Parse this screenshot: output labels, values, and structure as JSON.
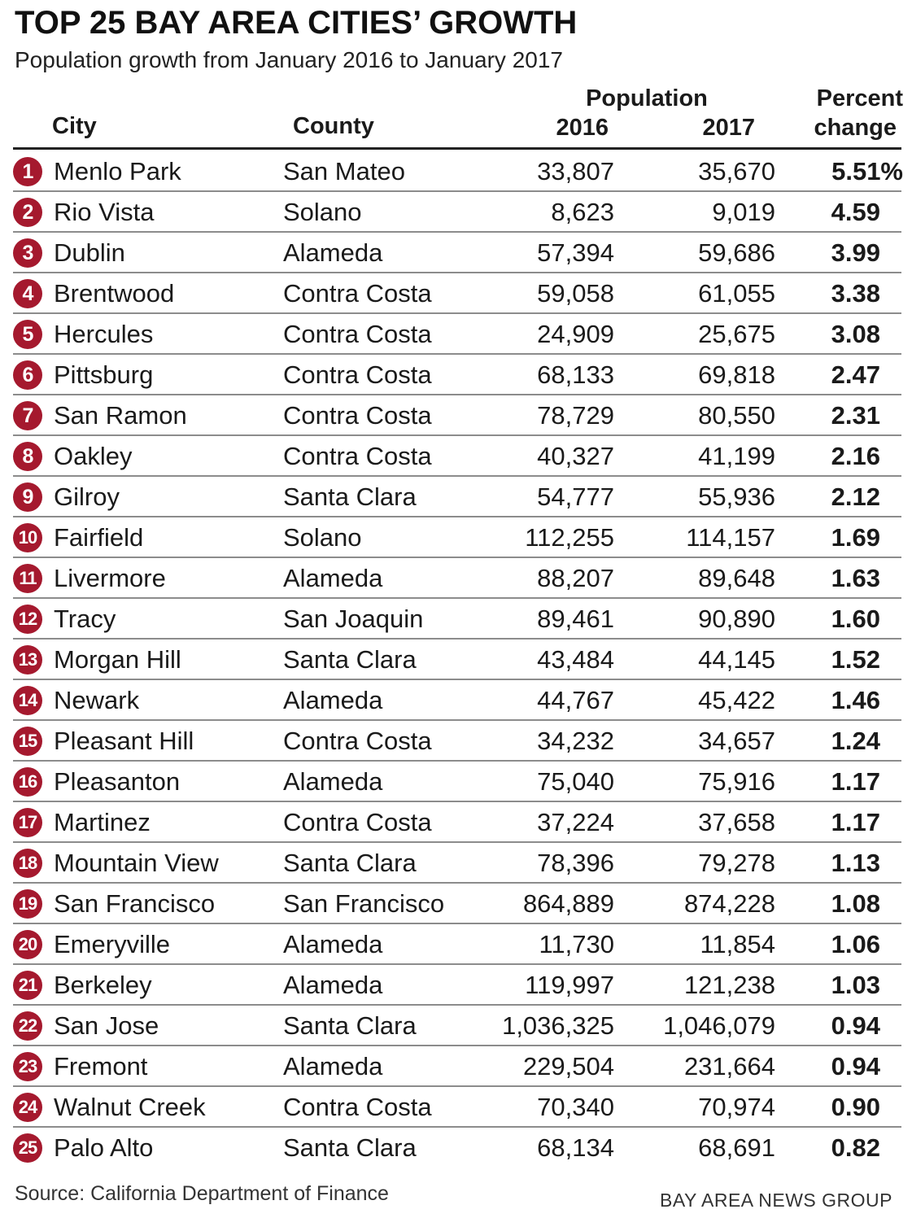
{
  "title": "TOP 25 BAY AREA CITIES’ GROWTH",
  "subtitle": "Population growth from January 2016 to January 2017",
  "headers": {
    "city": "City",
    "county": "County",
    "population": "Population",
    "year2016": "2016",
    "year2017": "2017",
    "percent_line1": "Percent",
    "percent_line2": "change"
  },
  "source": "Source: California Department of Finance",
  "credit": "BAY AREA NEWS GROUP",
  "colors": {
    "badge": "#a5192e",
    "rule": "#222222",
    "separator": "#8c8c8c"
  },
  "chart_data": {
    "type": "table",
    "columns": [
      "Rank",
      "City",
      "County",
      "2016",
      "2017",
      "Percent change"
    ],
    "rows": [
      {
        "rank": "1",
        "city": "Menlo Park",
        "county": "San Mateo",
        "pop2016": "33,807",
        "pop2017": "35,670",
        "pct": "5.51%"
      },
      {
        "rank": "2",
        "city": "Rio Vista",
        "county": "Solano",
        "pop2016": "8,623",
        "pop2017": "9,019",
        "pct": "4.59"
      },
      {
        "rank": "3",
        "city": "Dublin",
        "county": "Alameda",
        "pop2016": "57,394",
        "pop2017": "59,686",
        "pct": "3.99"
      },
      {
        "rank": "4",
        "city": "Brentwood",
        "county": "Contra Costa",
        "pop2016": "59,058",
        "pop2017": "61,055",
        "pct": "3.38"
      },
      {
        "rank": "5",
        "city": "Hercules",
        "county": "Contra Costa",
        "pop2016": "24,909",
        "pop2017": "25,675",
        "pct": "3.08"
      },
      {
        "rank": "6",
        "city": "Pittsburg",
        "county": "Contra Costa",
        "pop2016": "68,133",
        "pop2017": "69,818",
        "pct": "2.47"
      },
      {
        "rank": "7",
        "city": "San Ramon",
        "county": "Contra Costa",
        "pop2016": "78,729",
        "pop2017": "80,550",
        "pct": "2.31"
      },
      {
        "rank": "8",
        "city": "Oakley",
        "county": "Contra Costa",
        "pop2016": "40,327",
        "pop2017": "41,199",
        "pct": "2.16"
      },
      {
        "rank": "9",
        "city": "Gilroy",
        "county": "Santa Clara",
        "pop2016": "54,777",
        "pop2017": "55,936",
        "pct": "2.12"
      },
      {
        "rank": "10",
        "city": "Fairfield",
        "county": "Solano",
        "pop2016": "112,255",
        "pop2017": "114,157",
        "pct": "1.69"
      },
      {
        "rank": "11",
        "city": "Livermore",
        "county": "Alameda",
        "pop2016": "88,207",
        "pop2017": "89,648",
        "pct": "1.63"
      },
      {
        "rank": "12",
        "city": "Tracy",
        "county": "San Joaquin",
        "pop2016": "89,461",
        "pop2017": "90,890",
        "pct": "1.60"
      },
      {
        "rank": "13",
        "city": "Morgan Hill",
        "county": "Santa Clara",
        "pop2016": "43,484",
        "pop2017": "44,145",
        "pct": "1.52"
      },
      {
        "rank": "14",
        "city": "Newark",
        "county": "Alameda",
        "pop2016": "44,767",
        "pop2017": "45,422",
        "pct": "1.46"
      },
      {
        "rank": "15",
        "city": "Pleasant Hill",
        "county": "Contra Costa",
        "pop2016": "34,232",
        "pop2017": "34,657",
        "pct": "1.24"
      },
      {
        "rank": "16",
        "city": "Pleasanton",
        "county": "Alameda",
        "pop2016": "75,040",
        "pop2017": "75,916",
        "pct": "1.17"
      },
      {
        "rank": "17",
        "city": "Martinez",
        "county": "Contra Costa",
        "pop2016": "37,224",
        "pop2017": "37,658",
        "pct": "1.17"
      },
      {
        "rank": "18",
        "city": "Mountain View",
        "county": "Santa Clara",
        "pop2016": "78,396",
        "pop2017": "79,278",
        "pct": "1.13"
      },
      {
        "rank": "19",
        "city": "San Francisco",
        "county": "San Francisco",
        "pop2016": "864,889",
        "pop2017": "874,228",
        "pct": "1.08"
      },
      {
        "rank": "20",
        "city": "Emeryville",
        "county": "Alameda",
        "pop2016": "11,730",
        "pop2017": "11,854",
        "pct": "1.06"
      },
      {
        "rank": "21",
        "city": "Berkeley",
        "county": "Alameda",
        "pop2016": "119,997",
        "pop2017": "121,238",
        "pct": "1.03"
      },
      {
        "rank": "22",
        "city": "San Jose",
        "county": "Santa Clara",
        "pop2016": "1,036,325",
        "pop2017": "1,046,079",
        "pct": "0.94"
      },
      {
        "rank": "23",
        "city": "Fremont",
        "county": "Alameda",
        "pop2016": "229,504",
        "pop2017": "231,664",
        "pct": "0.94"
      },
      {
        "rank": "24",
        "city": "Walnut Creek",
        "county": "Contra Costa",
        "pop2016": "70,340",
        "pop2017": "70,974",
        "pct": "0.90"
      },
      {
        "rank": "25",
        "city": "Palo Alto",
        "county": "Santa Clara",
        "pop2016": "68,134",
        "pop2017": "68,691",
        "pct": "0.82"
      }
    ]
  }
}
